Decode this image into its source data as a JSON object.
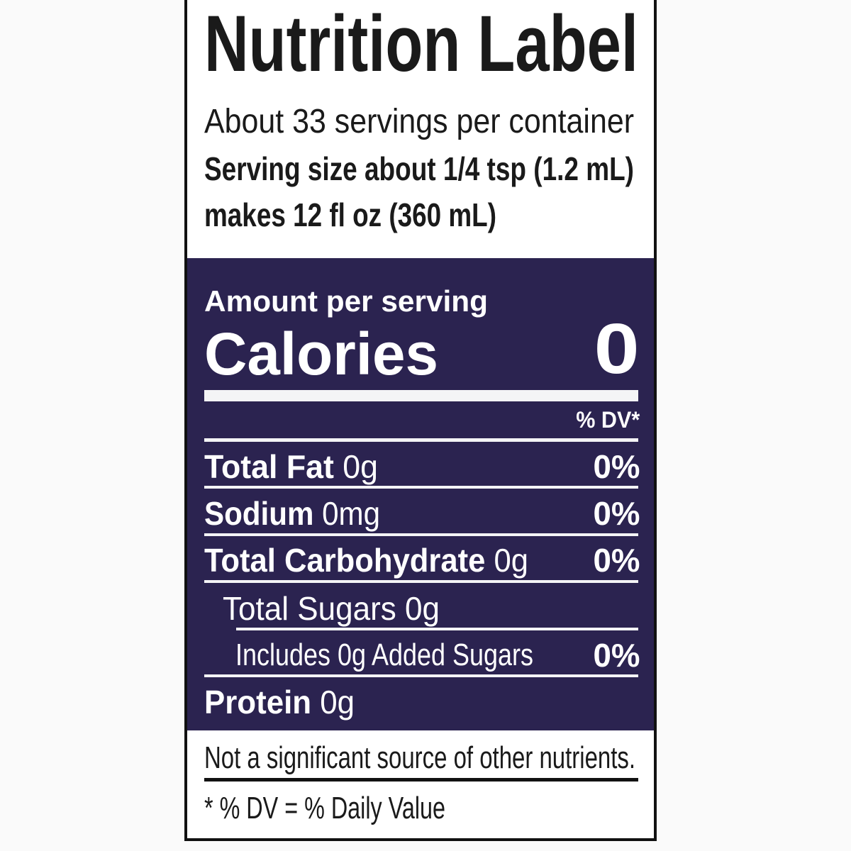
{
  "title": "Nutrition Label",
  "servings_per_container": "About 33 servings per container",
  "serving_size": "Serving size about 1/4 tsp (1.2 mL)",
  "makes": "makes 12 fl oz (360 mL)",
  "amount_per_serving": "Amount per serving",
  "calories": {
    "label": "Calories",
    "value": "0"
  },
  "dv_header": "% DV*",
  "nutrients": [
    {
      "name": "Total Fat",
      "amount": "0g",
      "dv": "0%"
    },
    {
      "name": "Sodium",
      "amount": "0mg",
      "dv": "0%"
    },
    {
      "name": "Total Carbohydrate",
      "amount": "0g",
      "dv": "0%"
    },
    {
      "name": "",
      "amount": "Total Sugars 0g",
      "dv": ""
    },
    {
      "name": "",
      "amount": "Includes 0g Added Sugars",
      "dv": "0%"
    },
    {
      "name": "Protein",
      "amount": "0g",
      "dv": ""
    }
  ],
  "footnote_other": "Not a significant source of other nutrients.",
  "footnote_dv": "* % DV = % Daily Value",
  "colors": {
    "panel": "#2b2350",
    "text_light": "#ffffff",
    "text_dark": "#1a1a1a",
    "border": "#111111"
  }
}
